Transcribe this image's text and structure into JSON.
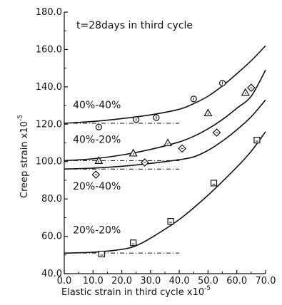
{
  "chart_data": {
    "type": "scatter",
    "title": "",
    "annotation": "t=28days in third cycle",
    "xlabel": "Elastic strain in third cycle x10",
    "xlabel_exponent": "-5",
    "ylabel": "Creep strain x10",
    "ylabel_exponent": "-5",
    "xlim": [
      0.0,
      70.0
    ],
    "ylim": [
      40.0,
      180.0
    ],
    "x_ticks": [
      "0.0",
      "10.0",
      "20.0",
      "30.0",
      "40.0",
      "50.0",
      "60.0",
      "70.0"
    ],
    "y_ticks": [
      "40.0",
      "60.0",
      "80.0",
      "100.0",
      "120.0",
      "140.0",
      "160.0",
      "180.0"
    ],
    "grid": false,
    "series": [
      {
        "name": "40%-40%",
        "marker": "circle",
        "points": [
          [
            12.0,
            118.5
          ],
          [
            25.0,
            122.5
          ],
          [
            32.0,
            123.5
          ],
          [
            45.0,
            133.5
          ],
          [
            55.0,
            142.0
          ]
        ],
        "curve": [
          [
            0.0,
            120.5
          ],
          [
            10.0,
            121.5
          ],
          [
            20.0,
            123.0
          ],
          [
            30.0,
            125.0
          ],
          [
            40.0,
            128.0
          ],
          [
            45.0,
            131.0
          ],
          [
            50.0,
            135.0
          ],
          [
            55.0,
            140.5
          ],
          [
            60.0,
            147.0
          ],
          [
            65.0,
            154.0
          ],
          [
            70.0,
            162.0
          ]
        ],
        "baseline": {
          "y": 120.5,
          "x_end": 40.0
        }
      },
      {
        "name": "40%-20%",
        "marker": "triangle",
        "points": [
          [
            12.0,
            100.5
          ],
          [
            24.0,
            104.5
          ],
          [
            36.0,
            110.0
          ],
          [
            50.0,
            126.0
          ],
          [
            63.0,
            137.0
          ]
        ],
        "curve": [
          [
            0.0,
            100.5
          ],
          [
            10.0,
            101.5
          ],
          [
            20.0,
            103.5
          ],
          [
            30.0,
            106.5
          ],
          [
            40.0,
            110.5
          ],
          [
            45.0,
            113.5
          ],
          [
            50.0,
            117.5
          ],
          [
            55.0,
            122.5
          ],
          [
            60.0,
            128.5
          ],
          [
            65.0,
            135.0
          ],
          [
            70.0,
            149.0
          ]
        ],
        "baseline": {
          "y": 100.5,
          "x_end": 40.0
        }
      },
      {
        "name": "20%-40%",
        "marker": "diamond",
        "points": [
          [
            11.0,
            93.0
          ],
          [
            28.0,
            99.5
          ],
          [
            41.0,
            107.0
          ],
          [
            53.0,
            115.5
          ],
          [
            65.0,
            139.5
          ]
        ],
        "curve": [
          [
            0.0,
            96.0
          ],
          [
            10.0,
            96.5
          ],
          [
            20.0,
            97.5
          ],
          [
            30.0,
            99.0
          ],
          [
            40.0,
            101.0
          ],
          [
            45.0,
            102.5
          ],
          [
            50.0,
            106.0
          ],
          [
            55.0,
            111.0
          ],
          [
            60.0,
            117.0
          ],
          [
            65.0,
            124.0
          ],
          [
            70.0,
            133.0
          ]
        ],
        "baseline": {
          "y": 96.0,
          "x_end": 40.0
        }
      },
      {
        "name": "20%-20%",
        "marker": "square",
        "points": [
          [
            13.0,
            50.5
          ],
          [
            24.0,
            56.5
          ],
          [
            37.0,
            68.0
          ],
          [
            52.0,
            88.5
          ],
          [
            67.0,
            111.5
          ]
        ],
        "curve": [
          [
            0.0,
            51.0
          ],
          [
            10.0,
            51.5
          ],
          [
            20.0,
            53.0
          ],
          [
            25.0,
            55.0
          ],
          [
            30.0,
            59.0
          ],
          [
            40.0,
            69.0
          ],
          [
            50.0,
            82.0
          ],
          [
            60.0,
            97.0
          ],
          [
            65.0,
            105.5
          ],
          [
            70.0,
            116.0
          ]
        ],
        "baseline": {
          "y": 51.0,
          "x_end": 40.0
        }
      }
    ],
    "labels": [
      {
        "text": "40%-40%",
        "x": 3.0,
        "y": 128.5
      },
      {
        "text": "40%-20%",
        "x": 3.0,
        "y": 110.0
      },
      {
        "text": "20%-40%",
        "x": 3.0,
        "y": 85.0
      },
      {
        "text": "20%-20%",
        "x": 3.0,
        "y": 61.5
      }
    ]
  }
}
